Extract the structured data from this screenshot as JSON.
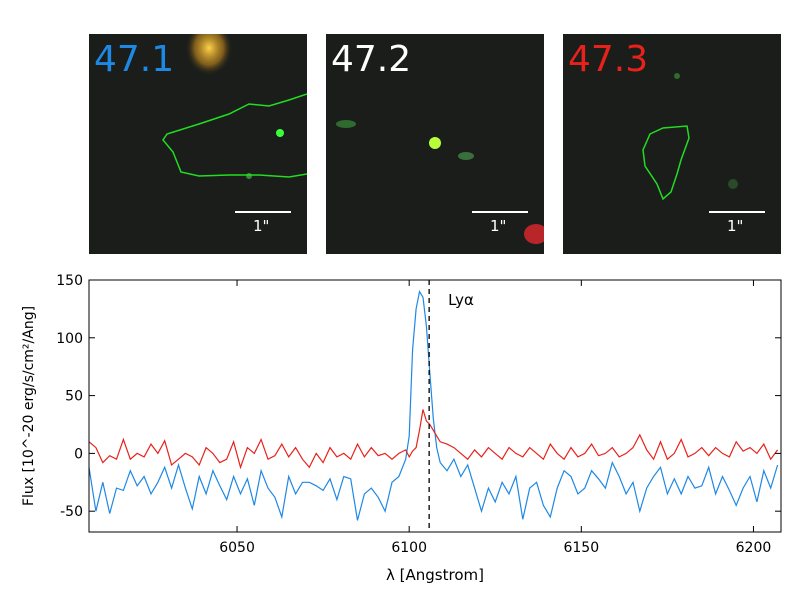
{
  "stamps": [
    {
      "label": "47.1",
      "color": "#1e88e5",
      "scale_label": "1\""
    },
    {
      "label": "47.2",
      "color": "#ffffff",
      "scale_label": "1\""
    },
    {
      "label": "47.3",
      "color": "#e8221b",
      "scale_label": "1\""
    }
  ],
  "chart_data": {
    "type": "line",
    "xlabel": "λ [Angstrom]",
    "ylabel": "Flux [10^-20 erg/s/cm²/Ang]",
    "xlim": [
      6007,
      6208
    ],
    "ylim": [
      -68,
      150
    ],
    "x_ticks": [
      6050,
      6100,
      6150,
      6200
    ],
    "y_ticks": [
      -50,
      0,
      50,
      100,
      150
    ],
    "annotation": {
      "text": "Lyα",
      "x": 6105.8
    },
    "series": [
      {
        "color": "#1e88e5",
        "values": [
          [
            6007,
            -12
          ],
          [
            6009,
            -50
          ],
          [
            6011,
            -25
          ],
          [
            6013,
            -52
          ],
          [
            6015,
            -30
          ],
          [
            6017,
            -32
          ],
          [
            6019,
            -15
          ],
          [
            6021,
            -28
          ],
          [
            6023,
            -20
          ],
          [
            6025,
            -35
          ],
          [
            6027,
            -25
          ],
          [
            6029,
            -12
          ],
          [
            6031,
            -30
          ],
          [
            6033,
            -10
          ],
          [
            6035,
            -30
          ],
          [
            6037,
            -48
          ],
          [
            6039,
            -20
          ],
          [
            6041,
            -35
          ],
          [
            6043,
            -15
          ],
          [
            6045,
            -28
          ],
          [
            6047,
            -40
          ],
          [
            6049,
            -20
          ],
          [
            6051,
            -35
          ],
          [
            6053,
            -22
          ],
          [
            6055,
            -45
          ],
          [
            6057,
            -15
          ],
          [
            6059,
            -30
          ],
          [
            6061,
            -38
          ],
          [
            6063,
            -55
          ],
          [
            6065,
            -20
          ],
          [
            6067,
            -35
          ],
          [
            6069,
            -25
          ],
          [
            6071,
            -25
          ],
          [
            6073,
            -28
          ],
          [
            6075,
            -32
          ],
          [
            6077,
            -22
          ],
          [
            6079,
            -40
          ],
          [
            6081,
            -20
          ],
          [
            6083,
            -22
          ],
          [
            6085,
            -58
          ],
          [
            6087,
            -35
          ],
          [
            6089,
            -30
          ],
          [
            6091,
            -38
          ],
          [
            6093,
            -50
          ],
          [
            6095,
            -25
          ],
          [
            6097,
            -20
          ],
          [
            6099,
            -5
          ],
          [
            6100,
            15
          ],
          [
            6101,
            90
          ],
          [
            6102,
            125
          ],
          [
            6103,
            140
          ],
          [
            6104,
            135
          ],
          [
            6105,
            110
          ],
          [
            6106,
            70
          ],
          [
            6107,
            30
          ],
          [
            6108,
            5
          ],
          [
            6109,
            -8
          ],
          [
            6111,
            -15
          ],
          [
            6113,
            -5
          ],
          [
            6115,
            -20
          ],
          [
            6117,
            -10
          ],
          [
            6119,
            -30
          ],
          [
            6121,
            -50
          ],
          [
            6123,
            -30
          ],
          [
            6125,
            -42
          ],
          [
            6127,
            -25
          ],
          [
            6129,
            -35
          ],
          [
            6131,
            -20
          ],
          [
            6133,
            -57
          ],
          [
            6135,
            -30
          ],
          [
            6137,
            -25
          ],
          [
            6139,
            -45
          ],
          [
            6141,
            -55
          ],
          [
            6143,
            -30
          ],
          [
            6145,
            -15
          ],
          [
            6147,
            -20
          ],
          [
            6149,
            -35
          ],
          [
            6151,
            -30
          ],
          [
            6153,
            -15
          ],
          [
            6155,
            -22
          ],
          [
            6157,
            -30
          ],
          [
            6159,
            -8
          ],
          [
            6161,
            -20
          ],
          [
            6163,
            -35
          ],
          [
            6165,
            -25
          ],
          [
            6167,
            -50
          ],
          [
            6169,
            -30
          ],
          [
            6171,
            -20
          ],
          [
            6173,
            -12
          ],
          [
            6175,
            -35
          ],
          [
            6177,
            -22
          ],
          [
            6179,
            -35
          ],
          [
            6181,
            -20
          ],
          [
            6183,
            -30
          ],
          [
            6185,
            -28
          ],
          [
            6187,
            -12
          ],
          [
            6189,
            -35
          ],
          [
            6191,
            -20
          ],
          [
            6193,
            -32
          ],
          [
            6195,
            -45
          ],
          [
            6197,
            -30
          ],
          [
            6199,
            -20
          ],
          [
            6201,
            -42
          ],
          [
            6203,
            -15
          ],
          [
            6205,
            -30
          ],
          [
            6207,
            -10
          ]
        ]
      },
      {
        "color": "#e8221b",
        "values": [
          [
            6007,
            10
          ],
          [
            6009,
            5
          ],
          [
            6011,
            -8
          ],
          [
            6013,
            -2
          ],
          [
            6015,
            -5
          ],
          [
            6017,
            12
          ],
          [
            6019,
            -5
          ],
          [
            6021,
            0
          ],
          [
            6023,
            -3
          ],
          [
            6025,
            8
          ],
          [
            6027,
            0
          ],
          [
            6029,
            11
          ],
          [
            6031,
            -10
          ],
          [
            6033,
            -5
          ],
          [
            6035,
            0
          ],
          [
            6037,
            -3
          ],
          [
            6039,
            -10
          ],
          [
            6041,
            5
          ],
          [
            6043,
            0
          ],
          [
            6045,
            -8
          ],
          [
            6047,
            -5
          ],
          [
            6049,
            10
          ],
          [
            6051,
            -12
          ],
          [
            6053,
            5
          ],
          [
            6055,
            0
          ],
          [
            6057,
            12
          ],
          [
            6059,
            -5
          ],
          [
            6061,
            -2
          ],
          [
            6063,
            8
          ],
          [
            6065,
            -3
          ],
          [
            6067,
            5
          ],
          [
            6069,
            -5
          ],
          [
            6071,
            -12
          ],
          [
            6073,
            0
          ],
          [
            6075,
            -8
          ],
          [
            6077,
            5
          ],
          [
            6079,
            -3
          ],
          [
            6081,
            0
          ],
          [
            6083,
            -5
          ],
          [
            6085,
            8
          ],
          [
            6087,
            -3
          ],
          [
            6089,
            5
          ],
          [
            6091,
            -2
          ],
          [
            6093,
            0
          ],
          [
            6095,
            -5
          ],
          [
            6097,
            0
          ],
          [
            6099,
            3
          ],
          [
            6100,
            -3
          ],
          [
            6101,
            2
          ],
          [
            6102,
            5
          ],
          [
            6103,
            20
          ],
          [
            6104,
            38
          ],
          [
            6105,
            28
          ],
          [
            6106,
            25
          ],
          [
            6107,
            20
          ],
          [
            6108,
            15
          ],
          [
            6109,
            10
          ],
          [
            6111,
            8
          ],
          [
            6113,
            5
          ],
          [
            6115,
            0
          ],
          [
            6117,
            -5
          ],
          [
            6119,
            3
          ],
          [
            6121,
            -3
          ],
          [
            6123,
            5
          ],
          [
            6125,
            0
          ],
          [
            6127,
            -5
          ],
          [
            6129,
            5
          ],
          [
            6131,
            0
          ],
          [
            6133,
            -3
          ],
          [
            6135,
            5
          ],
          [
            6137,
            0
          ],
          [
            6139,
            -5
          ],
          [
            6141,
            8
          ],
          [
            6143,
            0
          ],
          [
            6145,
            -5
          ],
          [
            6147,
            5
          ],
          [
            6149,
            -3
          ],
          [
            6151,
            0
          ],
          [
            6153,
            8
          ],
          [
            6155,
            -2
          ],
          [
            6157,
            0
          ],
          [
            6159,
            5
          ],
          [
            6161,
            -3
          ],
          [
            6163,
            0
          ],
          [
            6165,
            5
          ],
          [
            6167,
            16
          ],
          [
            6169,
            3
          ],
          [
            6171,
            -5
          ],
          [
            6173,
            10
          ],
          [
            6175,
            -5
          ],
          [
            6177,
            0
          ],
          [
            6179,
            12
          ],
          [
            6181,
            -3
          ],
          [
            6183,
            0
          ],
          [
            6185,
            5
          ],
          [
            6187,
            -2
          ],
          [
            6189,
            5
          ],
          [
            6191,
            0
          ],
          [
            6193,
            -3
          ],
          [
            6195,
            10
          ],
          [
            6197,
            2
          ],
          [
            6199,
            5
          ],
          [
            6201,
            0
          ],
          [
            6203,
            8
          ],
          [
            6205,
            -5
          ],
          [
            6207,
            3
          ]
        ]
      }
    ]
  }
}
